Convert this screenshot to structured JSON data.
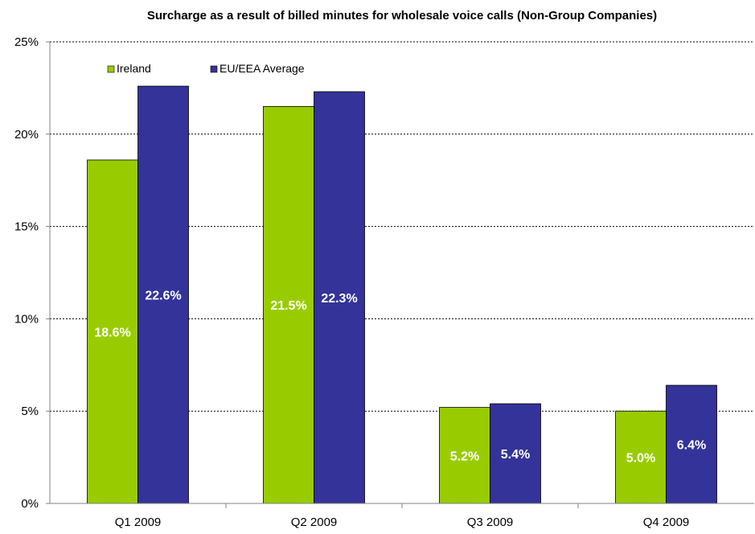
{
  "chart_data": {
    "type": "bar",
    "title": "Surcharge as a result of billed minutes for wholesale voice calls (Non-Group Companies)",
    "xlabel": "",
    "ylabel": "",
    "categories": [
      "Q1 2009",
      "Q2 2009",
      "Q3 2009",
      "Q4 2009"
    ],
    "series": [
      {
        "name": "Ireland",
        "color": "#99CC00",
        "values": [
          18.6,
          21.5,
          5.2,
          5.0
        ],
        "labels": [
          "18.6%",
          "21.5%",
          "5.2%",
          "5.0%"
        ]
      },
      {
        "name": "EU/EEA Average",
        "color": "#333399",
        "values": [
          22.6,
          22.3,
          5.4,
          6.4
        ],
        "labels": [
          "22.6%",
          "22.3%",
          "5.4%",
          "6.4%"
        ]
      }
    ],
    "ylim": [
      0,
      25
    ],
    "yticks": [
      0,
      5,
      10,
      15,
      20,
      25
    ],
    "ytick_labels": [
      "0%",
      "5%",
      "10%",
      "15%",
      "20%",
      "25%"
    ],
    "grid": true,
    "legend_position": "top-left"
  }
}
